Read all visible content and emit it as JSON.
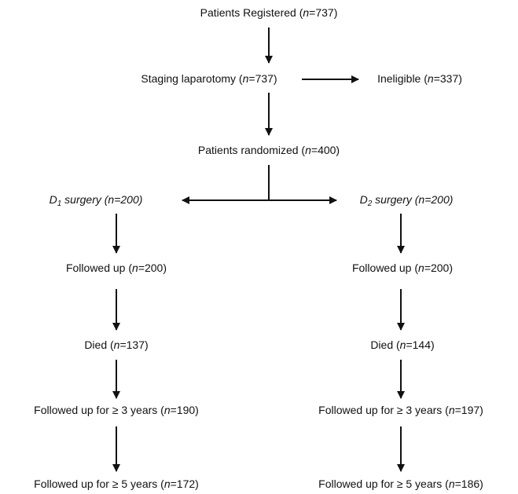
{
  "nodes": [
    {
      "parts": [
        "Patients Registered (",
        "n",
        "=737)"
      ]
    },
    {
      "parts": [
        "Staging laparotomy (",
        "n",
        "=737)"
      ]
    },
    {
      "parts": [
        "Ineligible (",
        "n",
        "=337)"
      ]
    },
    {
      "parts": [
        "Patients randomized (",
        "n",
        "=400)"
      ]
    },
    {
      "parts": [
        "D",
        "1",
        " surgery (n=200)"
      ]
    },
    {
      "parts": [
        "D",
        "2",
        " surgery (n=200)"
      ]
    },
    {
      "parts": [
        "Followed up (",
        "n",
        "=200)"
      ]
    },
    {
      "parts": [
        "Died (",
        "n",
        "=137)"
      ]
    },
    {
      "parts": [
        "Followed up for ≥ 3 years (",
        "n",
        "=190)"
      ]
    },
    {
      "parts": [
        "Followed up for ≥ 5 years (",
        "n",
        "=172)"
      ]
    },
    {
      "parts": [
        "Followed up (",
        "n",
        "=200)"
      ]
    },
    {
      "parts": [
        "Died (",
        "n",
        "=144)"
      ]
    },
    {
      "parts": [
        "Followed up for ≥ 3 years (",
        "n",
        "=197)"
      ]
    },
    {
      "parts": [
        "Followed up for ≥ 5 years (",
        "n",
        "=186)"
      ]
    }
  ]
}
